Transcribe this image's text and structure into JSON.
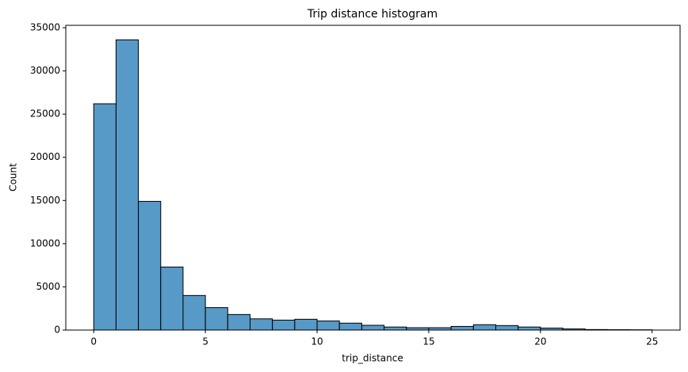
{
  "chart_data": {
    "type": "histogram",
    "title": "Trip distance histogram",
    "x_label": "trip_distance",
    "y_label": "Count",
    "bins": [
      0,
      1,
      2,
      3,
      4,
      5,
      6,
      7,
      8,
      9,
      10,
      11,
      12,
      13,
      14,
      15,
      16,
      17,
      18,
      19,
      20,
      21,
      22,
      23,
      24,
      25
    ],
    "values": [
      26200,
      33600,
      14900,
      7300,
      4000,
      2600,
      1800,
      1300,
      1150,
      1250,
      1050,
      800,
      550,
      350,
      270,
      270,
      420,
      620,
      520,
      350,
      230,
      130,
      60,
      40,
      30
    ],
    "color": "#5799c7",
    "xlim": [
      -1.25,
      26.25
    ],
    "xticks": [
      0,
      5,
      10,
      15,
      20,
      25
    ],
    "ylim": [
      0,
      35280
    ],
    "yticks": [
      0,
      5000,
      10000,
      15000,
      20000,
      25000,
      30000,
      35000
    ]
  }
}
